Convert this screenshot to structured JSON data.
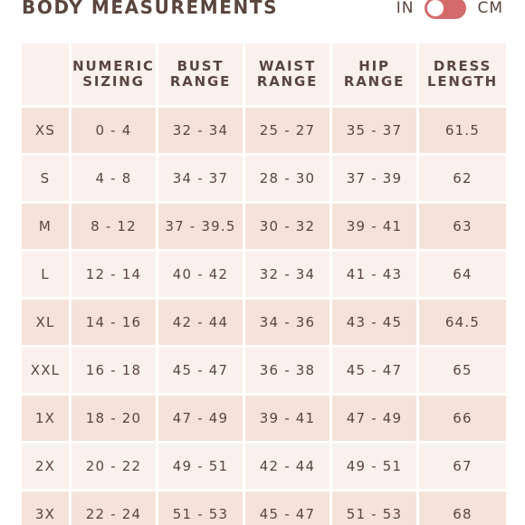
{
  "header": {
    "title": "BODY MEASUREMENTS",
    "unit_in": "IN",
    "unit_cm": "CM"
  },
  "colors": {
    "toggle": "#d46b6b",
    "row_dark": "#f6e2d8",
    "row_light": "#fbf1ec",
    "text": "#5a463f"
  },
  "table": {
    "columns": [
      {
        "line1": "",
        "line2": ""
      },
      {
        "line1": "NUMERIC",
        "line2": "SIZING"
      },
      {
        "line1": "BUST",
        "line2": "RANGE"
      },
      {
        "line1": "WAIST",
        "line2": "RANGE"
      },
      {
        "line1": "HIP",
        "line2": "RANGE"
      },
      {
        "line1": "DRESS",
        "line2": "LENGTH"
      }
    ],
    "rows": [
      [
        "XS",
        "0 - 4",
        "32 - 34",
        "25 - 27",
        "35 - 37",
        "61.5"
      ],
      [
        "S",
        "4 - 8",
        "34 - 37",
        "28 - 30",
        "37 - 39",
        "62"
      ],
      [
        "M",
        "8 - 12",
        "37 - 39.5",
        "30 - 32",
        "39 - 41",
        "63"
      ],
      [
        "L",
        "12 - 14",
        "40 - 42",
        "32 - 34",
        "41 - 43",
        "64"
      ],
      [
        "XL",
        "14 - 16",
        "42 - 44",
        "34 - 36",
        "43 - 45",
        "64.5"
      ],
      [
        "XXL",
        "16 - 18",
        "45 - 47",
        "36 - 38",
        "45 - 47",
        "65"
      ],
      [
        "1X",
        "18 - 20",
        "47 - 49",
        "39 - 41",
        "47 - 49",
        "66"
      ],
      [
        "2X",
        "20 - 22",
        "49 - 51",
        "42 - 44",
        "49 - 51",
        "67"
      ],
      [
        "3X",
        "22 - 24",
        "51 - 53",
        "45 - 47",
        "51 - 53",
        "68"
      ]
    ]
  }
}
